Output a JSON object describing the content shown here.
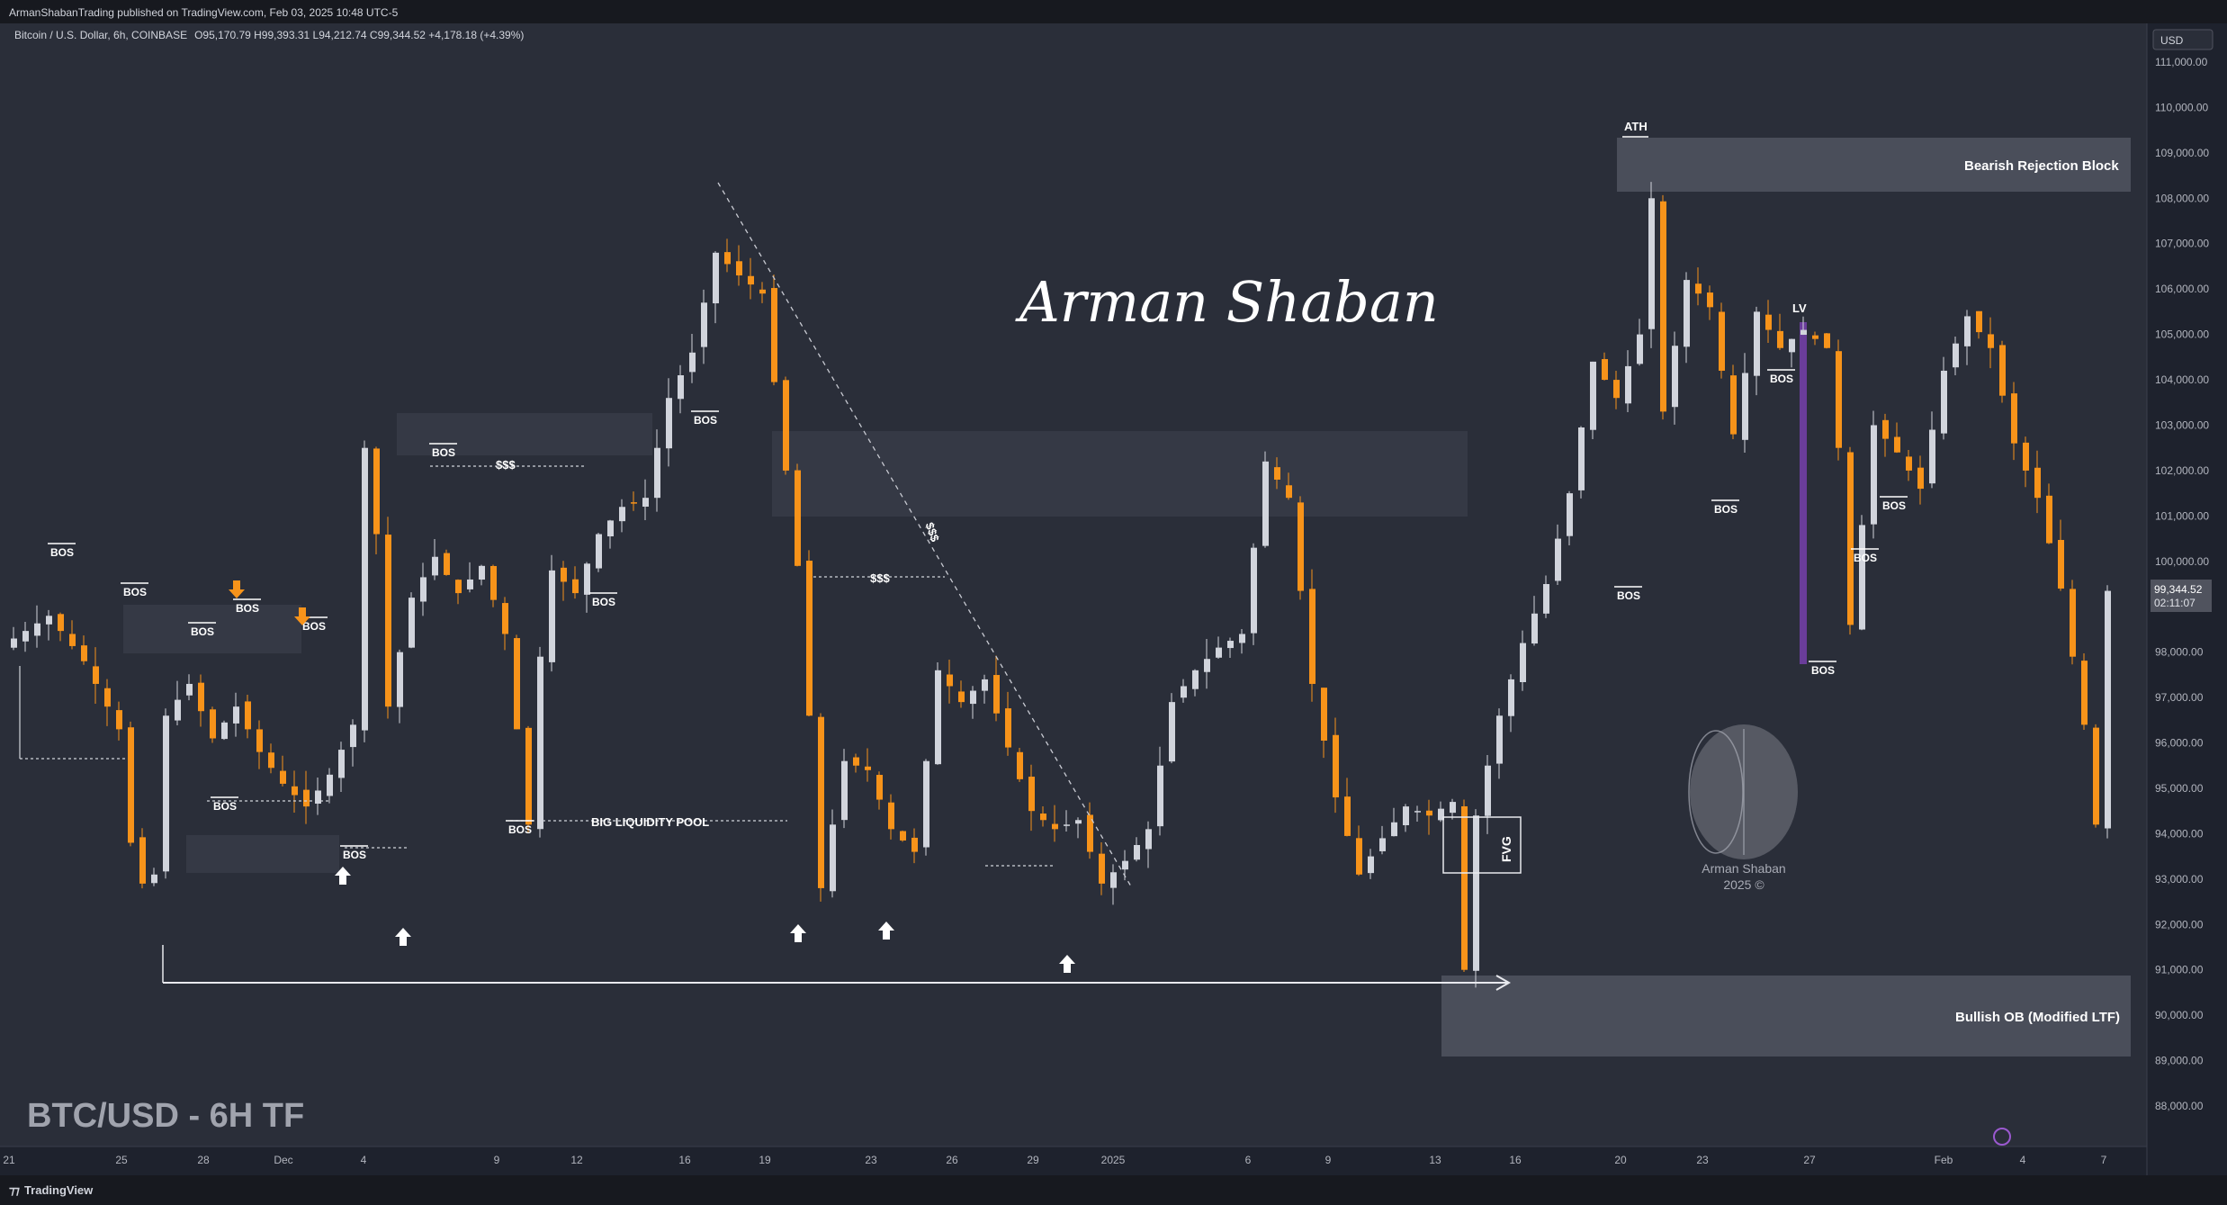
{
  "header": {
    "publish_line": "ArmanShabanTrading published on TradingView.com, Feb 03, 2025 10:48 UTC-5",
    "symbol_line": "Bitcoin / U.S. Dollar, 6h, COINBASE",
    "ohlc": "O95,170.79  H99,393.31  L94,212.74  C99,344.52  +4,178.18 (+4.39%)"
  },
  "footer": {
    "brand": "TradingView"
  },
  "price_axis": {
    "currency": "USD",
    "labels": [
      "111,000.00",
      "110,000.00",
      "109,000.00",
      "108,000.00",
      "107,000.00",
      "106,000.00",
      "105,000.00",
      "104,000.00",
      "103,000.00",
      "102,000.00",
      "101,000.00",
      "100,000.00",
      "98,000.00",
      "97,000.00",
      "96,000.00",
      "95,000.00",
      "94,000.00",
      "93,000.00",
      "92,000.00",
      "91,000.00",
      "90,000.00",
      "89,000.00",
      "88,000.00"
    ],
    "last_price": "99,344.52",
    "countdown": "02:11:07"
  },
  "colors": {
    "background": "#2a2e39",
    "bull": "#d1d4dc",
    "bear": "#f7931a",
    "zone": "#4a4e5a",
    "lv": "#6a3d9a"
  },
  "chart_data": {
    "type": "candlestick",
    "title": "BTC/USD - 6H TF",
    "watermark": "Arman Shaban",
    "logo_text": [
      "Arman Shaban",
      "2025 ©"
    ],
    "x_ticks": [
      "21",
      "25",
      "28",
      "Dec",
      "4",
      "9",
      "12",
      "16",
      "19",
      "23",
      "26",
      "29",
      "2025",
      "6",
      "9",
      "13",
      "16",
      "20",
      "23",
      "27",
      "Feb",
      "4",
      "7"
    ],
    "ylim": [
      87500,
      111500
    ],
    "close_path": [
      [
        0,
        98300
      ],
      [
        3,
        98800
      ],
      [
        6,
        97800
      ],
      [
        9,
        96300
      ],
      [
        10,
        93800
      ],
      [
        11,
        92900
      ],
      [
        12,
        93100
      ],
      [
        13,
        96600
      ],
      [
        15,
        97300
      ],
      [
        17,
        96100
      ],
      [
        19,
        96800
      ],
      [
        21,
        95800
      ],
      [
        23,
        95100
      ],
      [
        25,
        94600
      ],
      [
        27,
        95300
      ],
      [
        29,
        96400
      ],
      [
        30,
        102500
      ],
      [
        31,
        100600
      ],
      [
        32,
        96800
      ],
      [
        34,
        99200
      ],
      [
        36,
        100100
      ],
      [
        38,
        99300
      ],
      [
        40,
        99900
      ],
      [
        42,
        98400
      ],
      [
        44,
        94200
      ],
      [
        45,
        97900
      ],
      [
        46,
        99800
      ],
      [
        48,
        99300
      ],
      [
        50,
        100600
      ],
      [
        52,
        101200
      ],
      [
        54,
        101400
      ],
      [
        56,
        103600
      ],
      [
        58,
        104600
      ],
      [
        60,
        106800
      ],
      [
        62,
        106300
      ],
      [
        64,
        105900
      ],
      [
        66,
        102000
      ],
      [
        67,
        99900
      ],
      [
        68,
        96600
      ],
      [
        69,
        92800
      ],
      [
        71,
        95600
      ],
      [
        73,
        95400
      ],
      [
        75,
        94100
      ],
      [
        77,
        93600
      ],
      [
        79,
        97600
      ],
      [
        81,
        96900
      ],
      [
        83,
        97400
      ],
      [
        85,
        95900
      ],
      [
        87,
        94500
      ],
      [
        89,
        94100
      ],
      [
        91,
        94300
      ],
      [
        93,
        92900
      ],
      [
        95,
        93400
      ],
      [
        97,
        94100
      ],
      [
        99,
        96900
      ],
      [
        101,
        97600
      ],
      [
        103,
        98100
      ],
      [
        105,
        98400
      ],
      [
        107,
        102200
      ],
      [
        109,
        101400
      ],
      [
        111,
        97300
      ],
      [
        113,
        94800
      ],
      [
        115,
        93100
      ],
      [
        117,
        93900
      ],
      [
        119,
        94600
      ],
      [
        121,
        94400
      ],
      [
        123,
        94700
      ],
      [
        124,
        91000
      ],
      [
        125,
        94400
      ],
      [
        127,
        96600
      ],
      [
        129,
        98200
      ],
      [
        131,
        99500
      ],
      [
        133,
        101500
      ],
      [
        135,
        104400
      ],
      [
        137,
        103600
      ],
      [
        139,
        105000
      ],
      [
        140,
        108000
      ],
      [
        141,
        103300
      ],
      [
        143,
        106200
      ],
      [
        145,
        105600
      ],
      [
        147,
        102800
      ],
      [
        149,
        105500
      ],
      [
        151,
        104700
      ],
      [
        153,
        105100
      ],
      [
        155,
        104700
      ],
      [
        156,
        102500
      ],
      [
        157,
        98600
      ],
      [
        159,
        103000
      ],
      [
        161,
        102400
      ],
      [
        163,
        101600
      ],
      [
        165,
        104200
      ],
      [
        167,
        105400
      ],
      [
        169,
        104700
      ],
      [
        171,
        102600
      ],
      [
        173,
        101400
      ],
      [
        175,
        99400
      ],
      [
        177,
        96400
      ],
      [
        178,
        94200
      ],
      [
        179,
        99350
      ]
    ],
    "annotations": [
      "BOS",
      "$$$",
      "BIG LIQUIDITY POOL",
      "ATH",
      "LV",
      "FVG",
      "Bearish Rejection Block",
      "Bullish OB (Modified LTF)"
    ]
  },
  "annotation_text": {
    "bos": "BOS",
    "liquidity": "$$$",
    "big_pool": "BIG LIQUIDITY POOL",
    "ath": "ATH",
    "lv": "LV",
    "fvg": "FVG",
    "bearish_block": "Bearish Rejection Block",
    "bullish_ob": "Bullish OB (Modified LTF)"
  }
}
